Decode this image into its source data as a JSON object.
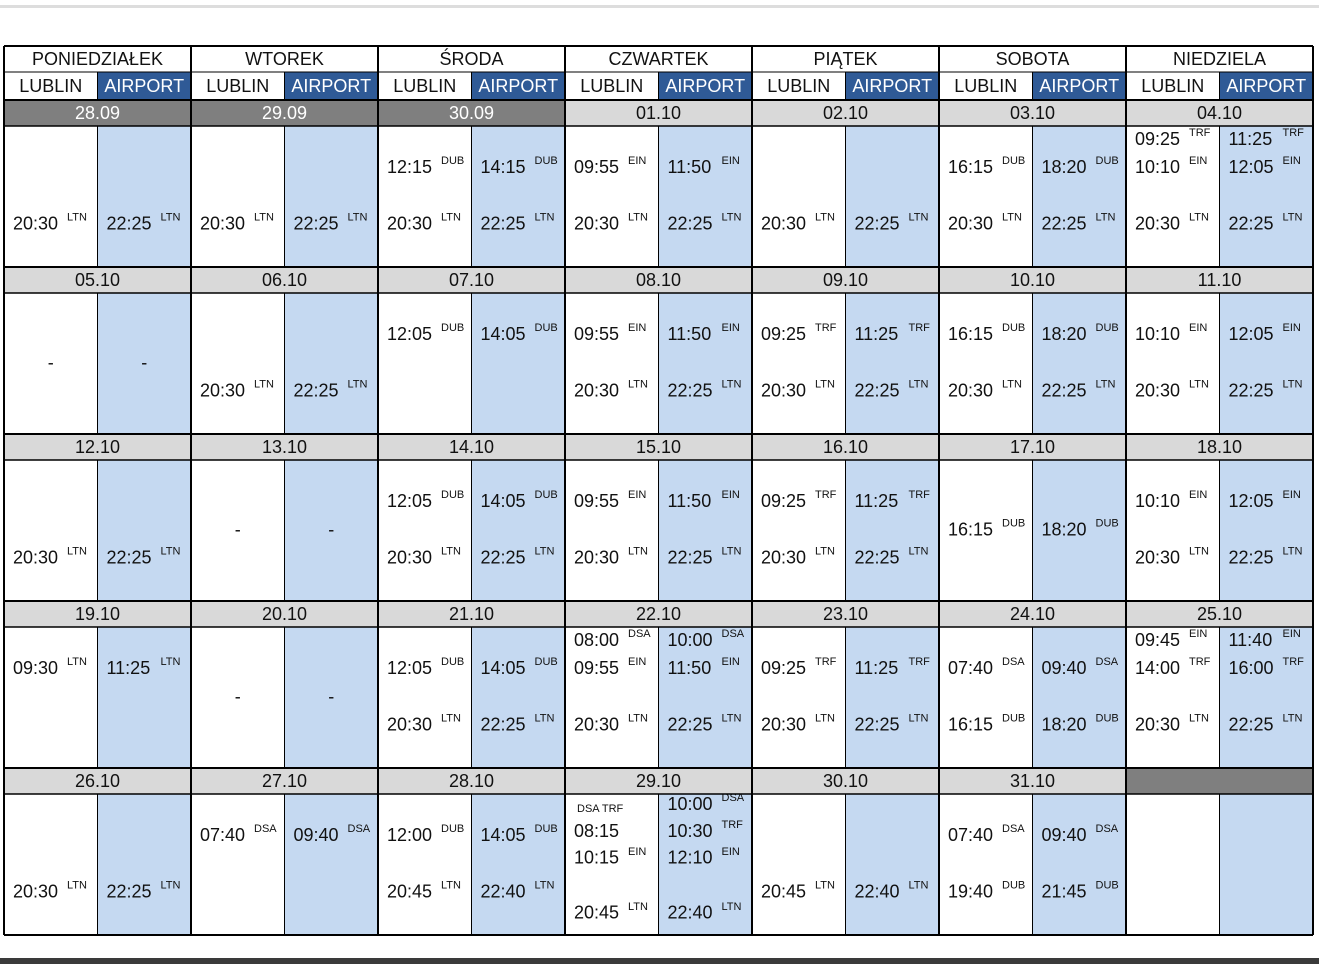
{
  "columns": [
    "LUBLIN",
    "AIRPORT"
  ],
  "days": [
    "PONIEDZIAŁEK",
    "WTOREK",
    "ŚRODA",
    "CZWARTEK",
    "PIĄTEK",
    "SOBOTA",
    "NIEDZIELA"
  ],
  "weeks": [
    [
      {
        "date": "28.09",
        "shaded": true,
        "lublin": [
          {
            "time": "20:30",
            "code": "LTN"
          }
        ],
        "airport": [
          {
            "time": "22:25",
            "code": "LTN"
          }
        ]
      },
      {
        "date": "29.09",
        "shaded": true,
        "lublin": [
          {
            "time": "20:30",
            "code": "LTN"
          }
        ],
        "airport": [
          {
            "time": "22:25",
            "code": "LTN"
          }
        ]
      },
      {
        "date": "30.09",
        "shaded": true,
        "lublin": [
          {
            "time": "12:15",
            "code": "DUB"
          },
          {
            "time": "20:30",
            "code": "LTN"
          }
        ],
        "airport": [
          {
            "time": "14:15",
            "code": "DUB"
          },
          {
            "time": "22:25",
            "code": "LTN"
          }
        ]
      },
      {
        "date": "01.10",
        "lublin": [
          {
            "time": "09:55",
            "code": "EIN"
          },
          {
            "time": "20:30",
            "code": "LTN"
          }
        ],
        "airport": [
          {
            "time": "11:50",
            "code": "EIN"
          },
          {
            "time": "22:25",
            "code": "LTN"
          }
        ]
      },
      {
        "date": "02.10",
        "lublin": [
          {
            "time": "20:30",
            "code": "LTN"
          }
        ],
        "airport": [
          {
            "time": "22:25",
            "code": "LTN"
          }
        ]
      },
      {
        "date": "03.10",
        "lublin": [
          {
            "time": "16:15",
            "code": "DUB"
          },
          {
            "time": "20:30",
            "code": "LTN"
          }
        ],
        "airport": [
          {
            "time": "18:20",
            "code": "DUB"
          },
          {
            "time": "22:25",
            "code": "LTN"
          }
        ]
      },
      {
        "date": "04.10",
        "lublin": [
          {
            "time": "09:25",
            "code": "TRF"
          },
          {
            "time": "10:10",
            "code": "EIN"
          },
          {
            "time": "20:30",
            "code": "LTN"
          }
        ],
        "airport": [
          {
            "time": "11:25",
            "code": "TRF"
          },
          {
            "time": "12:05",
            "code": "EIN"
          },
          {
            "time": "22:25",
            "code": "LTN"
          }
        ]
      }
    ],
    [
      {
        "date": "05.10",
        "lublin": [
          {
            "time": "-"
          }
        ],
        "airport": [
          {
            "time": "-"
          }
        ]
      },
      {
        "date": "06.10",
        "lublin": [
          {
            "time": "20:30",
            "code": "LTN"
          }
        ],
        "airport": [
          {
            "time": "22:25",
            "code": "LTN"
          }
        ]
      },
      {
        "date": "07.10",
        "lublin": [
          {
            "time": "12:05",
            "code": "DUB"
          }
        ],
        "airport": [
          {
            "time": "14:05",
            "code": "DUB"
          }
        ]
      },
      {
        "date": "08.10",
        "lublin": [
          {
            "time": "09:55",
            "code": "EIN"
          },
          {
            "time": "20:30",
            "code": "LTN"
          }
        ],
        "airport": [
          {
            "time": "11:50",
            "code": "EIN"
          },
          {
            "time": "22:25",
            "code": "LTN"
          }
        ]
      },
      {
        "date": "09.10",
        "lublin": [
          {
            "time": "09:25",
            "code": "TRF"
          },
          {
            "time": "20:30",
            "code": "LTN"
          }
        ],
        "airport": [
          {
            "time": "11:25",
            "code": "TRF"
          },
          {
            "time": "22:25",
            "code": "LTN"
          }
        ]
      },
      {
        "date": "10.10",
        "lublin": [
          {
            "time": "16:15",
            "code": "DUB"
          },
          {
            "time": "20:30",
            "code": "LTN"
          }
        ],
        "airport": [
          {
            "time": "18:20",
            "code": "DUB"
          },
          {
            "time": "22:25",
            "code": "LTN"
          }
        ]
      },
      {
        "date": "11.10",
        "lublin": [
          {
            "time": "10:10",
            "code": "EIN"
          },
          {
            "time": "20:30",
            "code": "LTN"
          }
        ],
        "airport": [
          {
            "time": "12:05",
            "code": "EIN"
          },
          {
            "time": "22:25",
            "code": "LTN"
          }
        ]
      }
    ],
    [
      {
        "date": "12.10",
        "lublin": [
          {
            "time": "20:30",
            "code": "LTN"
          }
        ],
        "airport": [
          {
            "time": "22:25",
            "code": "LTN"
          }
        ]
      },
      {
        "date": "13.10",
        "lublin": [
          {
            "time": "-"
          }
        ],
        "airport": [
          {
            "time": "-"
          }
        ]
      },
      {
        "date": "14.10",
        "lublin": [
          {
            "time": "12:05",
            "code": "DUB"
          },
          {
            "time": "20:30",
            "code": "LTN"
          }
        ],
        "airport": [
          {
            "time": "14:05",
            "code": "DUB"
          },
          {
            "time": "22:25",
            "code": "LTN"
          }
        ]
      },
      {
        "date": "15.10",
        "lublin": [
          {
            "time": "09:55",
            "code": "EIN"
          },
          {
            "time": "20:30",
            "code": "LTN"
          }
        ],
        "airport": [
          {
            "time": "11:50",
            "code": "EIN"
          },
          {
            "time": "22:25",
            "code": "LTN"
          }
        ]
      },
      {
        "date": "16.10",
        "lublin": [
          {
            "time": "09:25",
            "code": "TRF"
          },
          {
            "time": "20:30",
            "code": "LTN"
          }
        ],
        "airport": [
          {
            "time": "11:25",
            "code": "TRF"
          },
          {
            "time": "22:25",
            "code": "LTN"
          }
        ]
      },
      {
        "date": "17.10",
        "lublin": [
          {
            "time": "16:15",
            "code": "DUB"
          }
        ],
        "airport": [
          {
            "time": "18:20",
            "code": "DUB"
          }
        ]
      },
      {
        "date": "18.10",
        "lublin": [
          {
            "time": "10:10",
            "code": "EIN"
          },
          {
            "time": "20:30",
            "code": "LTN"
          }
        ],
        "airport": [
          {
            "time": "12:05",
            "code": "EIN"
          },
          {
            "time": "22:25",
            "code": "LTN"
          }
        ]
      }
    ],
    [
      {
        "date": "19.10",
        "lublin": [
          {
            "time": "09:30",
            "code": "LTN"
          }
        ],
        "airport": [
          {
            "time": "11:25",
            "code": "LTN"
          }
        ]
      },
      {
        "date": "20.10",
        "lublin": [
          {
            "time": "-"
          }
        ],
        "airport": [
          {
            "time": "-"
          }
        ]
      },
      {
        "date": "21.10",
        "lublin": [
          {
            "time": "12:05",
            "code": "DUB"
          },
          {
            "time": "20:30",
            "code": "LTN"
          }
        ],
        "airport": [
          {
            "time": "14:05",
            "code": "DUB"
          },
          {
            "time": "22:25",
            "code": "LTN"
          }
        ]
      },
      {
        "date": "22.10",
        "lublin": [
          {
            "time": "08:00",
            "code": "DSA"
          },
          {
            "time": "09:55",
            "code": "EIN"
          },
          {
            "time": "20:30",
            "code": "LTN"
          }
        ],
        "airport": [
          {
            "time": "10:00",
            "code": "DSA"
          },
          {
            "time": "11:50",
            "code": "EIN"
          },
          {
            "time": "22:25",
            "code": "LTN"
          }
        ]
      },
      {
        "date": "23.10",
        "lublin": [
          {
            "time": "09:25",
            "code": "TRF"
          },
          {
            "time": "20:30",
            "code": "LTN"
          }
        ],
        "airport": [
          {
            "time": "11:25",
            "code": "TRF"
          },
          {
            "time": "22:25",
            "code": "LTN"
          }
        ]
      },
      {
        "date": "24.10",
        "lublin": [
          {
            "time": "07:40",
            "code": "DSA"
          },
          {
            "time": "16:15",
            "code": "DUB"
          }
        ],
        "airport": [
          {
            "time": "09:40",
            "code": "DSA"
          },
          {
            "time": "18:20",
            "code": "DUB"
          }
        ]
      },
      {
        "date": "25.10",
        "lublin": [
          {
            "time": "09:45",
            "code": "EIN"
          },
          {
            "time": "14:00",
            "code": "TRF"
          },
          {
            "time": "20:30",
            "code": "LTN"
          }
        ],
        "airport": [
          {
            "time": "11:40",
            "code": "EIN"
          },
          {
            "time": "16:00",
            "code": "TRF"
          },
          {
            "time": "22:25",
            "code": "LTN"
          }
        ]
      }
    ],
    [
      {
        "date": "26.10",
        "lublin": [
          {
            "time": "20:30",
            "code": "LTN"
          }
        ],
        "airport": [
          {
            "time": "22:25",
            "code": "LTN"
          }
        ]
      },
      {
        "date": "27.10",
        "lublin": [
          {
            "time": "07:40",
            "code": "DSA"
          }
        ],
        "airport": [
          {
            "time": "09:40",
            "code": "DSA"
          }
        ]
      },
      {
        "date": "28.10",
        "lublin": [
          {
            "time": "12:00",
            "code": "DUB"
          },
          {
            "time": "20:45",
            "code": "LTN"
          }
        ],
        "airport": [
          {
            "time": "14:05",
            "code": "DUB"
          },
          {
            "time": "22:40",
            "code": "LTN"
          }
        ]
      },
      {
        "date": "29.10",
        "lublin": [
          {
            "code": "DSA TRF"
          },
          {
            "time": "08:15"
          },
          {
            "time": "10:15",
            "code": "EIN"
          },
          {
            "time": "20:45",
            "code": "LTN"
          }
        ],
        "airport": [
          {
            "time": "10:00",
            "code": "DSA"
          },
          {
            "time": "10:30",
            "code": "TRF"
          },
          {
            "time": "12:10",
            "code": "EIN"
          },
          {
            "time": "22:40",
            "code": "LTN"
          }
        ]
      },
      {
        "date": "30.10",
        "lublin": [
          {
            "time": "20:45",
            "code": "LTN"
          }
        ],
        "airport": [
          {
            "time": "22:40",
            "code": "LTN"
          }
        ]
      },
      {
        "date": "31.10",
        "lublin": [
          {
            "time": "07:40",
            "code": "DSA"
          },
          {
            "time": "19:40",
            "code": "DUB"
          }
        ],
        "airport": [
          {
            "time": "09:40",
            "code": "DSA"
          },
          {
            "time": "21:45",
            "code": "DUB"
          }
        ]
      },
      {
        "date": null,
        "shaded": true,
        "lublin": [],
        "airport": []
      }
    ]
  ]
}
